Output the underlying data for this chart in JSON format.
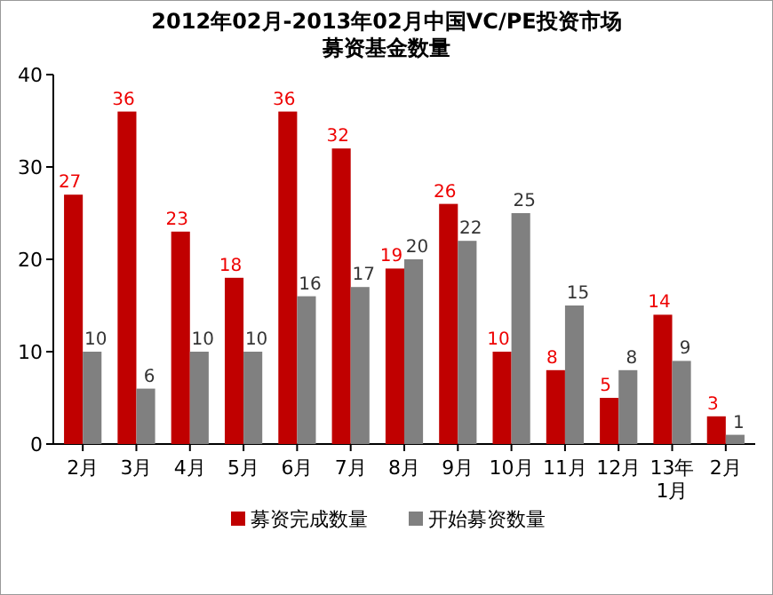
{
  "chart_data": {
    "type": "bar",
    "title": "2012年02月-2013年02月中国VC/PE投资市场",
    "subtitle": "募资基金数量",
    "categories": [
      "2月",
      "3月",
      "4月",
      "5月",
      "6月",
      "7月",
      "8月",
      "9月",
      "10月",
      "11月",
      "12月",
      "13年\n1月",
      "2月"
    ],
    "series": [
      {
        "name": "募资完成数量",
        "color": "#c00000",
        "values": [
          27,
          36,
          23,
          18,
          36,
          32,
          19,
          26,
          10,
          8,
          5,
          14,
          3
        ]
      },
      {
        "name": "开始募资数量",
        "color": "#808080",
        "values": [
          10,
          6,
          10,
          10,
          16,
          17,
          20,
          22,
          25,
          15,
          8,
          9,
          1
        ]
      }
    ],
    "ylim": [
      0,
      40
    ],
    "yticks": [
      0,
      10,
      20,
      30,
      40
    ],
    "data_labels": true,
    "legend": "bottom"
  }
}
